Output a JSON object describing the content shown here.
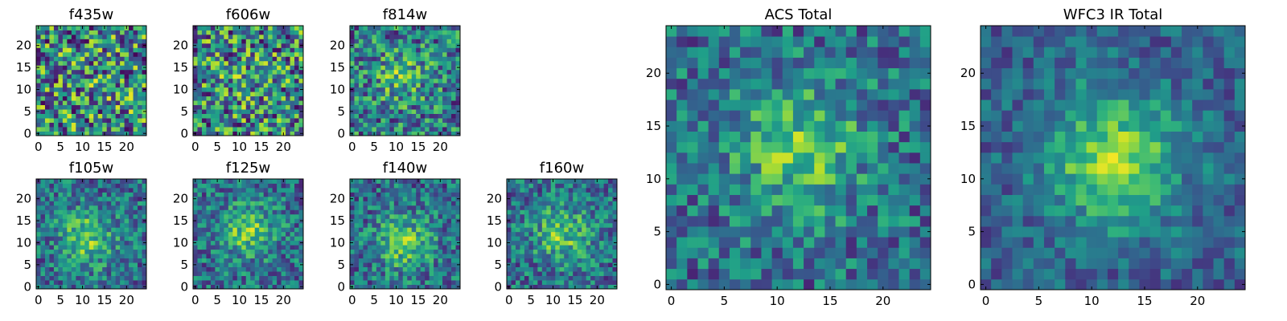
{
  "chart_data": [
    {
      "type": "heatmap",
      "title": "f435w",
      "colormap": "viridis",
      "xlim": [
        0,
        24
      ],
      "ylim": [
        0,
        24
      ],
      "xticks": [
        "0",
        "5",
        "10",
        "15",
        "20"
      ],
      "yticks": [
        "0",
        "5",
        "10",
        "15",
        "20"
      ],
      "peak": [
        14,
        13
      ],
      "structure": 0.05,
      "noise": 0.95,
      "seed": 11
    },
    {
      "type": "heatmap",
      "title": "f606w",
      "colormap": "viridis",
      "xlim": [
        0,
        24
      ],
      "ylim": [
        0,
        24
      ],
      "xticks": [
        "0",
        "5",
        "10",
        "15",
        "20"
      ],
      "yticks": [
        "0",
        "5",
        "10",
        "15",
        "20"
      ],
      "peak": [
        12,
        12
      ],
      "structure": 0.1,
      "noise": 0.9,
      "seed": 23
    },
    {
      "type": "heatmap",
      "title": "f814w",
      "colormap": "viridis",
      "xlim": [
        0,
        24
      ],
      "ylim": [
        0,
        24
      ],
      "xticks": [
        "0",
        "5",
        "10",
        "15",
        "20"
      ],
      "yticks": [
        "0",
        "5",
        "10",
        "15",
        "20"
      ],
      "peak": [
        11,
        13
      ],
      "structure": 0.3,
      "noise": 0.75,
      "seed": 37
    },
    {
      "type": "heatmap",
      "title": "f105w",
      "colormap": "viridis",
      "xlim": [
        0,
        24
      ],
      "ylim": [
        0,
        24
      ],
      "xticks": [
        "0",
        "5",
        "10",
        "15",
        "20"
      ],
      "yticks": [
        "0",
        "5",
        "10",
        "15",
        "20"
      ],
      "peak": [
        11,
        11
      ],
      "structure": 0.5,
      "noise": 0.6,
      "seed": 41
    },
    {
      "type": "heatmap",
      "title": "f125w",
      "colormap": "viridis",
      "xlim": [
        0,
        24
      ],
      "ylim": [
        0,
        24
      ],
      "xticks": [
        "0",
        "5",
        "10",
        "15",
        "20"
      ],
      "yticks": [
        "0",
        "5",
        "10",
        "15",
        "20"
      ],
      "peak": [
        12,
        13
      ],
      "structure": 0.5,
      "noise": 0.6,
      "seed": 53
    },
    {
      "type": "heatmap",
      "title": "f140w",
      "colormap": "viridis",
      "xlim": [
        0,
        24
      ],
      "ylim": [
        0,
        24
      ],
      "xticks": [
        "0",
        "5",
        "10",
        "15",
        "20"
      ],
      "yticks": [
        "0",
        "5",
        "10",
        "15",
        "20"
      ],
      "peak": [
        12,
        10
      ],
      "structure": 0.5,
      "noise": 0.6,
      "seed": 67
    },
    {
      "type": "heatmap",
      "title": "f160w",
      "colormap": "viridis",
      "xlim": [
        0,
        24
      ],
      "ylim": [
        0,
        24
      ],
      "xticks": [
        "0",
        "5",
        "10",
        "15",
        "20"
      ],
      "yticks": [
        "0",
        "5",
        "10",
        "15",
        "20"
      ],
      "peak": [
        12,
        12
      ],
      "structure": 0.5,
      "noise": 0.6,
      "seed": 79
    },
    {
      "type": "heatmap",
      "title": "ACS Total",
      "colormap": "viridis",
      "xlim": [
        0,
        24
      ],
      "ylim": [
        0,
        24
      ],
      "xticks": [
        "0",
        "5",
        "10",
        "15",
        "20"
      ],
      "yticks": [
        "0",
        "5",
        "10",
        "15",
        "20"
      ],
      "peak": [
        12,
        13
      ],
      "structure": 0.5,
      "noise": 0.55,
      "seed": 97
    },
    {
      "type": "heatmap",
      "title": "WFC3 IR Total",
      "colormap": "viridis",
      "xlim": [
        0,
        24
      ],
      "ylim": [
        0,
        24
      ],
      "xticks": [
        "0",
        "5",
        "10",
        "15",
        "20"
      ],
      "yticks": [
        "0",
        "5",
        "10",
        "15",
        "20"
      ],
      "peak": [
        12,
        12
      ],
      "structure": 0.7,
      "noise": 0.4,
      "seed": 101
    }
  ]
}
